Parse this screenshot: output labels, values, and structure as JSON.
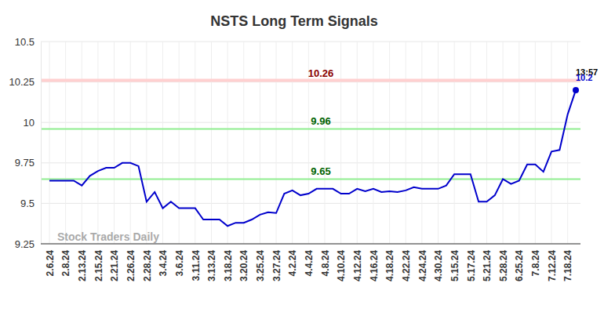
{
  "chart_data": {
    "type": "line",
    "title": "NSTS Long Term Signals",
    "watermark": "Stock Traders Daily",
    "categories": [
      "2.6.24",
      null,
      "2.8.24",
      null,
      "2.13.24",
      null,
      "2.15.24",
      null,
      "2.21.24",
      null,
      "2.26.24",
      null,
      "2.28.24",
      null,
      "3.4.24",
      null,
      "3.6.24",
      null,
      "3.11.24",
      null,
      "3.13.24",
      null,
      "3.18.24",
      null,
      "3.20.24",
      null,
      "3.25.24",
      null,
      "3.27.24",
      null,
      "4.2.24",
      null,
      "4.4.24",
      null,
      "4.8.24",
      null,
      "4.10.24",
      null,
      "4.12.24",
      null,
      "4.16.24",
      null,
      "4.18.24",
      null,
      "4.22.24",
      null,
      "4.24.24",
      null,
      "4.30.24",
      null,
      "5.15.24",
      null,
      "5.17.24",
      null,
      "5.21.24",
      null,
      "5.28.24",
      null,
      "6.25.24",
      null,
      "7.8.24",
      null,
      "7.12.24",
      null,
      "7.18.24",
      null
    ],
    "series": [
      {
        "name": "NSTS",
        "color": "#0000cc",
        "values": [
          9.64,
          9.64,
          9.64,
          9.64,
          9.61,
          9.67,
          9.7,
          9.72,
          9.72,
          9.75,
          9.75,
          9.73,
          9.51,
          9.57,
          9.47,
          9.51,
          9.47,
          9.47,
          9.47,
          9.4,
          9.4,
          9.4,
          9.36,
          9.38,
          9.38,
          9.4,
          9.43,
          9.445,
          9.44,
          9.56,
          9.58,
          9.55,
          9.56,
          9.59,
          9.59,
          9.59,
          9.56,
          9.56,
          9.59,
          9.575,
          9.59,
          9.57,
          9.575,
          9.57,
          9.58,
          9.6,
          9.59,
          9.59,
          9.59,
          9.61,
          9.68,
          9.68,
          9.68,
          9.51,
          9.51,
          9.55,
          9.65,
          9.62,
          9.64,
          9.74,
          9.74,
          9.695,
          9.82,
          9.83,
          10.05,
          10.2
        ]
      }
    ],
    "ylim": [
      9.25,
      10.5
    ],
    "yticks": [
      9.25,
      9.5,
      9.75,
      10,
      10.25,
      10.5
    ],
    "grid": true,
    "reference_lines": [
      {
        "value": 10.26,
        "label": "10.26",
        "color": "#ffd0d0",
        "label_color": "#8b0000"
      },
      {
        "value": 9.96,
        "label": "9.96",
        "color": "#90ee90",
        "label_color": "#006400"
      },
      {
        "value": 9.65,
        "label": "9.65",
        "color": "#90ee90",
        "label_color": "#006400"
      }
    ],
    "annotations": [
      {
        "text": "13:57",
        "color": "#000000"
      },
      {
        "text": "10.2",
        "value": 10.2,
        "color": "#0000cc"
      }
    ]
  }
}
